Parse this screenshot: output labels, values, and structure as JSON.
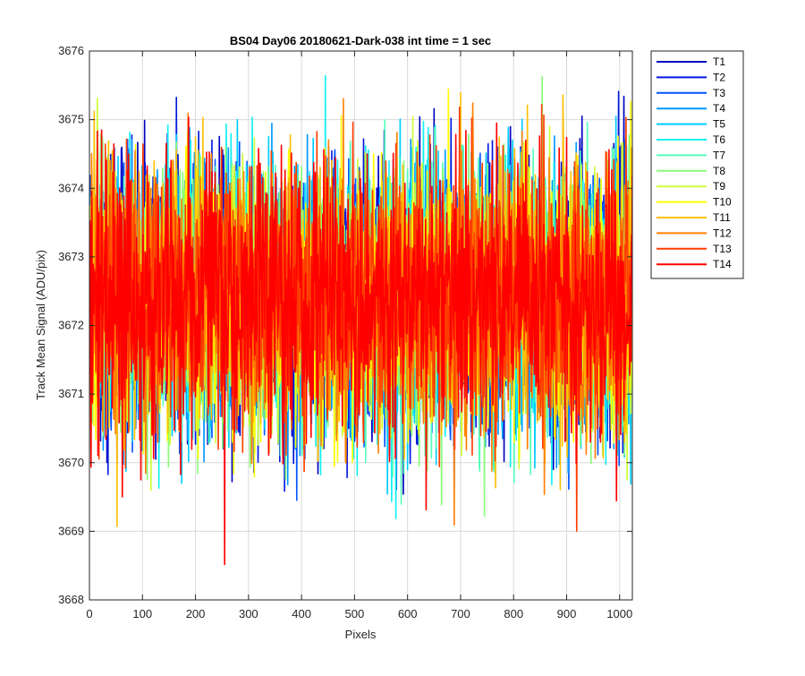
{
  "chart_data": {
    "type": "line",
    "title": "BS04 Day06 20180621-Dark-038 int time = 1 sec",
    "xlabel": "Pixels",
    "ylabel": "Track Mean Signal (ADU/pix)",
    "xlim": [
      0,
      1024
    ],
    "ylim": [
      3668,
      3676
    ],
    "xticks": [
      0,
      100,
      200,
      300,
      400,
      500,
      600,
      700,
      800,
      900,
      1000
    ],
    "yticks": [
      3668,
      3669,
      3670,
      3671,
      3672,
      3673,
      3674,
      3675,
      3676
    ],
    "grid": true,
    "legend_position": "outside-top-right",
    "x_spacing": 1,
    "series_baseline": 3672.4,
    "series": [
      {
        "name": "T1",
        "color": "#0000bf",
        "spread": 0.95,
        "seed": 11
      },
      {
        "name": "T2",
        "color": "#0018dd",
        "spread": 0.95,
        "seed": 23
      },
      {
        "name": "T3",
        "color": "#0055ff",
        "spread": 0.95,
        "seed": 37
      },
      {
        "name": "T4",
        "color": "#0099ff",
        "spread": 0.95,
        "seed": 41
      },
      {
        "name": "T5",
        "color": "#00ccff",
        "spread": 0.95,
        "seed": 53
      },
      {
        "name": "T6",
        "color": "#11f0f0",
        "spread": 0.95,
        "seed": 67
      },
      {
        "name": "T7",
        "color": "#55ffbb",
        "spread": 0.95,
        "seed": 71
      },
      {
        "name": "T8",
        "color": "#88ff77",
        "spread": 0.95,
        "seed": 83
      },
      {
        "name": "T9",
        "color": "#ccff33",
        "spread": 0.95,
        "seed": 97
      },
      {
        "name": "T10",
        "color": "#ffff00",
        "spread": 0.95,
        "seed": 101
      },
      {
        "name": "T11",
        "color": "#ffc000",
        "spread": 0.95,
        "seed": 113
      },
      {
        "name": "T12",
        "color": "#ff8000",
        "spread": 0.95,
        "seed": 127
      },
      {
        "name": "T13",
        "color": "#ff3c00",
        "spread": 0.95,
        "seed": 131
      },
      {
        "name": "T14",
        "color": "#ff0000",
        "spread": 0.95,
        "seed": 139
      }
    ]
  }
}
